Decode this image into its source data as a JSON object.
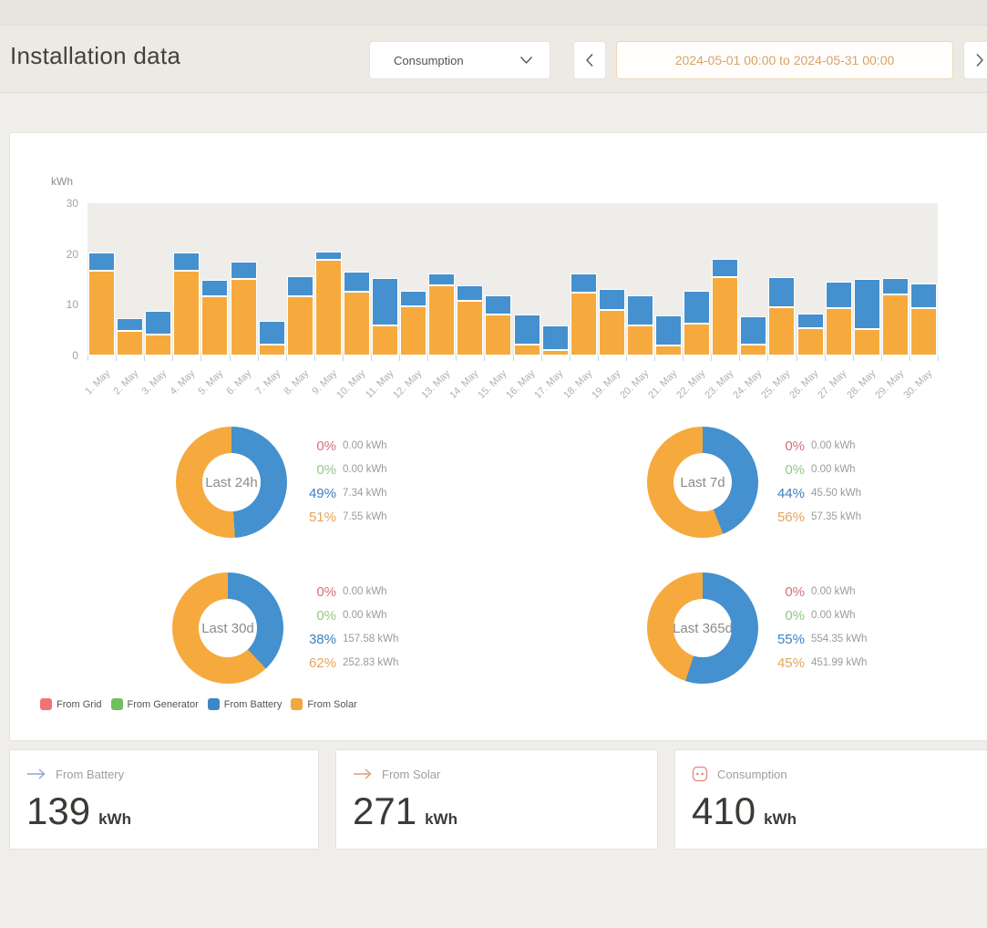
{
  "header": {
    "title": "Installation data",
    "metric": "Consumption",
    "date_range": "2024-05-01 00:00 to 2024-05-31 00:00"
  },
  "chart_data": {
    "type": "bar",
    "stacked": true,
    "title": "",
    "xlabel": "",
    "ylabel": "kWh",
    "ylim": [
      0,
      30
    ],
    "yticks": [
      0,
      10,
      20,
      30
    ],
    "grid": false,
    "legend_position": "bottom",
    "categories": [
      "1. May",
      "2. May",
      "3. May",
      "4. May",
      "5. May",
      "6. May",
      "7. May",
      "8. May",
      "9. May",
      "10. May",
      "11. May",
      "12. May",
      "13. May",
      "14. May",
      "15. May",
      "16. May",
      "17. May",
      "18. May",
      "19. May",
      "20. May",
      "21. May",
      "22. May",
      "23. May",
      "24. May",
      "25. May",
      "26. May",
      "27. May",
      "28. May",
      "29. May",
      "30. May"
    ],
    "series": [
      {
        "name": "From Solar",
        "color": "#F6AA3D",
        "values": [
          16.7,
          4.8,
          4.1,
          16.7,
          11.7,
          15.0,
          2.1,
          11.6,
          18.9,
          12.5,
          6.0,
          9.7,
          13.9,
          10.8,
          8.0,
          2.1,
          1.0,
          12.4,
          8.9,
          5.9,
          1.9,
          6.3,
          15.5,
          2.1,
          9.5,
          5.4,
          9.4,
          5.2,
          12.1,
          9.4
        ]
      },
      {
        "name": "From Battery",
        "color": "#4590CE",
        "values": [
          3.6,
          2.6,
          4.7,
          3.6,
          3.3,
          3.4,
          4.7,
          4.0,
          1.7,
          4.0,
          9.3,
          3.1,
          2.4,
          3.1,
          3.8,
          5.9,
          4.8,
          3.7,
          4.1,
          6.0,
          6.0,
          6.4,
          3.6,
          5.6,
          6.0,
          2.8,
          5.2,
          9.9,
          3.2,
          4.9
        ]
      }
    ]
  },
  "donuts": [
    {
      "label": "Last 24h",
      "segments": [
        {
          "name": "From Battery",
          "pct": 49,
          "color": "#4590CE"
        },
        {
          "name": "From Solar",
          "pct": 51,
          "color": "#F6AA3D"
        }
      ],
      "rows": [
        {
          "source": "From Grid",
          "pct": "0%",
          "value": "0.00 kWh",
          "pct_color": "#d76f7c"
        },
        {
          "source": "From Generator",
          "pct": "0%",
          "value": "0.00 kWh",
          "pct_color": "#93c885"
        },
        {
          "source": "From Battery",
          "pct": "49%",
          "value": "7.34 kWh",
          "pct_color": "#3d7fc0"
        },
        {
          "source": "From Solar",
          "pct": "51%",
          "value": "7.55 kWh",
          "pct_color": "#e5a45c"
        }
      ]
    },
    {
      "label": "Last 7d",
      "segments": [
        {
          "name": "From Battery",
          "pct": 44,
          "color": "#4590CE"
        },
        {
          "name": "From Solar",
          "pct": 56,
          "color": "#F6AA3D"
        }
      ],
      "rows": [
        {
          "source": "From Grid",
          "pct": "0%",
          "value": "0.00 kWh",
          "pct_color": "#d76f7c"
        },
        {
          "source": "From Generator",
          "pct": "0%",
          "value": "0.00 kWh",
          "pct_color": "#93c885"
        },
        {
          "source": "From Battery",
          "pct": "44%",
          "value": "45.50 kWh",
          "pct_color": "#3d7fc0"
        },
        {
          "source": "From Solar",
          "pct": "56%",
          "value": "57.35 kWh",
          "pct_color": "#e5a45c"
        }
      ]
    },
    {
      "label": "Last 30d",
      "segments": [
        {
          "name": "From Battery",
          "pct": 38,
          "color": "#4590CE"
        },
        {
          "name": "From Solar",
          "pct": 62,
          "color": "#F6AA3D"
        }
      ],
      "rows": [
        {
          "source": "From Grid",
          "pct": "0%",
          "value": "0.00 kWh",
          "pct_color": "#d76f7c"
        },
        {
          "source": "From Generator",
          "pct": "0%",
          "value": "0.00 kWh",
          "pct_color": "#93c885"
        },
        {
          "source": "From Battery",
          "pct": "38%",
          "value": "157.58 kWh",
          "pct_color": "#3d7fc0"
        },
        {
          "source": "From Solar",
          "pct": "62%",
          "value": "252.83 kWh",
          "pct_color": "#e5a45c"
        }
      ]
    },
    {
      "label": "Last 365d",
      "segments": [
        {
          "name": "From Battery",
          "pct": 55,
          "color": "#4590CE"
        },
        {
          "name": "From Solar",
          "pct": 45,
          "color": "#F6AA3D"
        }
      ],
      "rows": [
        {
          "source": "From Grid",
          "pct": "0%",
          "value": "0.00 kWh",
          "pct_color": "#d76f7c"
        },
        {
          "source": "From Generator",
          "pct": "0%",
          "value": "0.00 kWh",
          "pct_color": "#93c885"
        },
        {
          "source": "From Battery",
          "pct": "55%",
          "value": "554.35 kWh",
          "pct_color": "#3d7fc0"
        },
        {
          "source": "From Solar",
          "pct": "45%",
          "value": "451.99 kWh",
          "pct_color": "#e5a45c"
        }
      ]
    }
  ],
  "legend": [
    {
      "label": "From Grid",
      "color": "#f27373"
    },
    {
      "label": "From Generator",
      "color": "#72bf5f"
    },
    {
      "label": "From Battery",
      "color": "#3e86c6"
    },
    {
      "label": "From Solar",
      "color": "#f3a73c"
    }
  ],
  "cards": [
    {
      "label": "From Battery",
      "value": "139",
      "unit": "kWh",
      "icon": "arrow-right-icon",
      "icon_color": "#8ca6c9"
    },
    {
      "label": "From Solar",
      "value": "271",
      "unit": "kWh",
      "icon": "arrow-right-icon",
      "icon_color": "#de9b78"
    },
    {
      "label": "Consumption",
      "value": "410",
      "unit": "kWh",
      "icon": "outlet-icon",
      "icon_color": "#e5837a"
    }
  ]
}
